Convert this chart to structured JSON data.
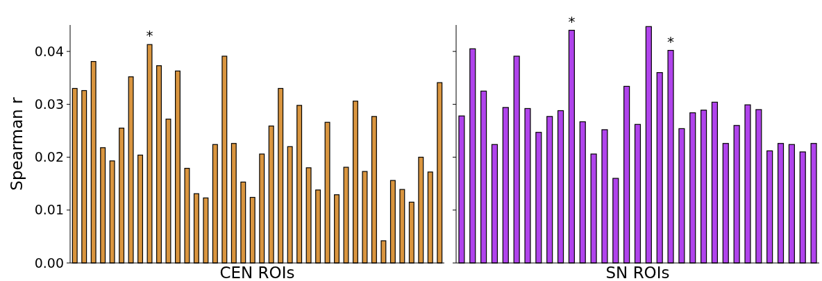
{
  "chart_data": [
    {
      "type": "bar",
      "xlabel": "CEN ROIs",
      "ylabel": "Spearman r",
      "categories": [
        null,
        null,
        null,
        null,
        null,
        null,
        null,
        null,
        null,
        null,
        null,
        null,
        null,
        null,
        null,
        null,
        null,
        null,
        null,
        null,
        null,
        null,
        null,
        null,
        null,
        null,
        null,
        null,
        null,
        null,
        null,
        null,
        null,
        null,
        null,
        null,
        null,
        null,
        null,
        null
      ],
      "color": "#d9953f",
      "values": [
        0.033,
        0.0326,
        0.0381,
        0.0218,
        0.0193,
        0.0255,
        0.0352,
        0.0204,
        0.0413,
        0.0373,
        0.0272,
        0.0363,
        0.0179,
        0.0131,
        0.0123,
        0.0224,
        0.0391,
        0.0226,
        0.0153,
        0.0124,
        0.0206,
        0.0259,
        0.033,
        0.022,
        0.0298,
        0.018,
        0.0138,
        0.0266,
        0.0129,
        0.0181,
        0.0306,
        0.0173,
        0.0277,
        0.0042,
        0.0156,
        0.0139,
        0.0115,
        0.02,
        0.0172,
        0.0341
      ],
      "value_labels": [
        null,
        null,
        null,
        null,
        null,
        null,
        null,
        null,
        "*",
        null,
        null,
        null,
        null,
        null,
        null,
        null,
        null,
        null,
        null,
        null,
        null,
        null,
        null,
        null,
        null,
        null,
        null,
        null,
        null,
        null,
        null,
        null,
        null,
        null,
        null,
        null,
        null,
        null,
        null,
        null
      ],
      "ylim": [
        0,
        0.045
      ],
      "yticks": [
        {
          "value": 0,
          "label": "0.00"
        },
        {
          "value": 0.01,
          "label": "0.01"
        },
        {
          "value": 0.02,
          "label": "0.02"
        },
        {
          "value": 0.03,
          "label": "0.03"
        },
        {
          "value": 0.04,
          "label": "0.04"
        }
      ],
      "tick_labels": "y"
    },
    {
      "type": "bar",
      "xlabel": "SN ROIs",
      "categories": [
        null,
        null,
        null,
        null,
        null,
        null,
        null,
        null,
        null,
        null,
        null,
        null,
        null,
        null,
        null,
        null,
        null,
        null,
        null,
        null,
        null,
        null,
        null,
        null,
        null,
        null,
        null,
        null,
        null,
        null,
        null,
        null,
        null
      ],
      "color": "#b044ec",
      "values": [
        0.0278,
        0.0405,
        0.0325,
        0.0224,
        0.0294,
        0.0391,
        0.0292,
        0.0247,
        0.0277,
        0.0288,
        0.044,
        0.0267,
        0.0206,
        0.0252,
        0.016,
        0.0334,
        0.0262,
        0.0447,
        0.036,
        0.0402,
        0.0254,
        0.0284,
        0.0289,
        0.0304,
        0.0226,
        0.026,
        0.0299,
        0.029,
        0.0212,
        0.0226,
        0.0224,
        0.021,
        0.0226
      ],
      "value_labels": [
        null,
        null,
        null,
        null,
        null,
        null,
        null,
        null,
        null,
        null,
        "*",
        null,
        null,
        null,
        null,
        null,
        null,
        null,
        null,
        "*",
        null,
        null,
        null,
        null,
        null,
        null,
        null,
        null,
        null,
        null,
        null,
        null,
        null
      ],
      "ylim": [
        0,
        0.045
      ],
      "yticks": [
        {
          "value": 0,
          "label": null
        },
        {
          "value": 0.01,
          "label": null
        },
        {
          "value": 0.02,
          "label": null
        },
        {
          "value": 0.03,
          "label": null
        },
        {
          "value": 0.04,
          "label": null
        }
      ],
      "tick_labels": false
    }
  ]
}
